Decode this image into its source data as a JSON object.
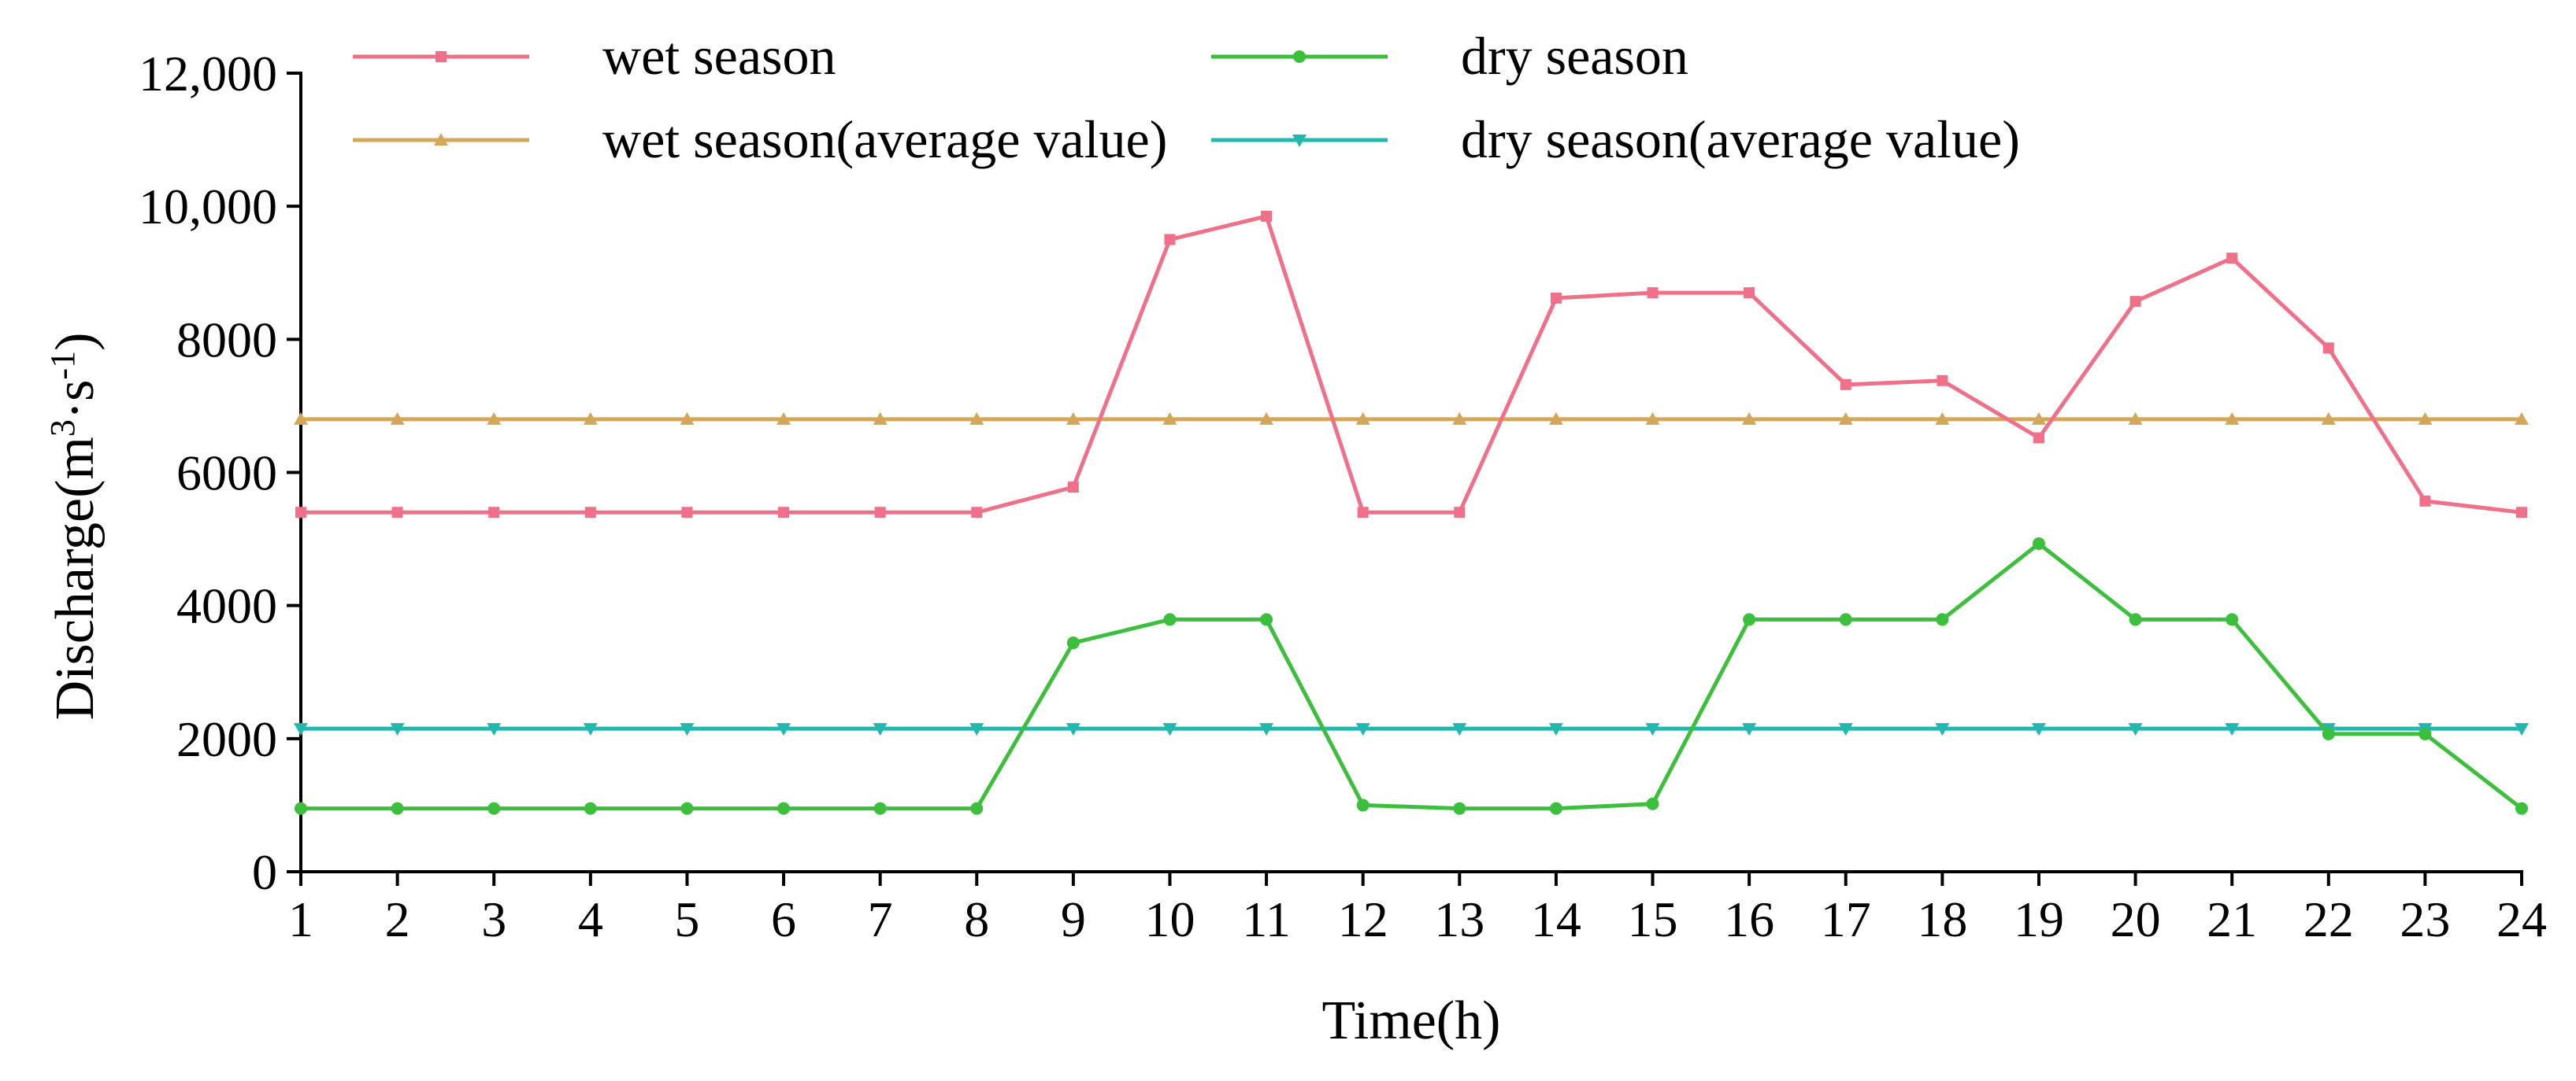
{
  "chart_data": {
    "type": "line",
    "title": "",
    "xlabel": "Time(h)",
    "ylabel": "Discharge(m³·s⁻¹)",
    "ylabel_parts": {
      "base": "Discharge(m",
      "sup1": "3",
      "mid": "·s",
      "sup2": "-1",
      "end": ")"
    },
    "x": [
      1,
      2,
      3,
      4,
      5,
      6,
      7,
      8,
      9,
      10,
      11,
      12,
      13,
      14,
      15,
      16,
      17,
      18,
      19,
      20,
      21,
      22,
      23,
      24
    ],
    "xlim": [
      1,
      24
    ],
    "ylim": [
      0,
      12000
    ],
    "yticks": [
      {
        "value": 0,
        "label": "0"
      },
      {
        "value": 2000,
        "label": "2000"
      },
      {
        "value": 4000,
        "label": "4000"
      },
      {
        "value": 6000,
        "label": "6000"
      },
      {
        "value": 8000,
        "label": "8000"
      },
      {
        "value": 10000,
        "label": "10,000"
      },
      {
        "value": 12000,
        "label": "12,000"
      }
    ],
    "grid": false,
    "legend_position": "top",
    "series": [
      {
        "name": "wet season",
        "color": "#f0708a",
        "marker": "square",
        "values": [
          5400,
          5400,
          5400,
          5400,
          5400,
          5400,
          5400,
          5400,
          5780,
          9500,
          9850,
          5400,
          5400,
          8620,
          8700,
          8700,
          7320,
          7380,
          6520,
          8570,
          9220,
          7870,
          5570,
          5400
        ]
      },
      {
        "name": "dry season",
        "color": "#3cbf3c",
        "marker": "circle",
        "values": [
          950,
          950,
          950,
          950,
          950,
          950,
          950,
          950,
          3440,
          3790,
          3790,
          1000,
          950,
          950,
          1020,
          3790,
          3790,
          3790,
          4930,
          3790,
          3790,
          2070,
          2070,
          950
        ]
      },
      {
        "name": "wet season(average value)",
        "color": "#d4a65a",
        "marker": "triangle-up",
        "values": [
          6800,
          6800,
          6800,
          6800,
          6800,
          6800,
          6800,
          6800,
          6800,
          6800,
          6800,
          6800,
          6800,
          6800,
          6800,
          6800,
          6800,
          6800,
          6800,
          6800,
          6800,
          6800,
          6800,
          6800
        ]
      },
      {
        "name": "dry season(average value)",
        "color": "#22b8b0",
        "marker": "triangle-down",
        "values": [
          2150,
          2150,
          2150,
          2150,
          2150,
          2150,
          2150,
          2150,
          2150,
          2150,
          2150,
          2150,
          2150,
          2150,
          2150,
          2150,
          2150,
          2150,
          2150,
          2150,
          2150,
          2150,
          2150,
          2150
        ]
      }
    ]
  }
}
